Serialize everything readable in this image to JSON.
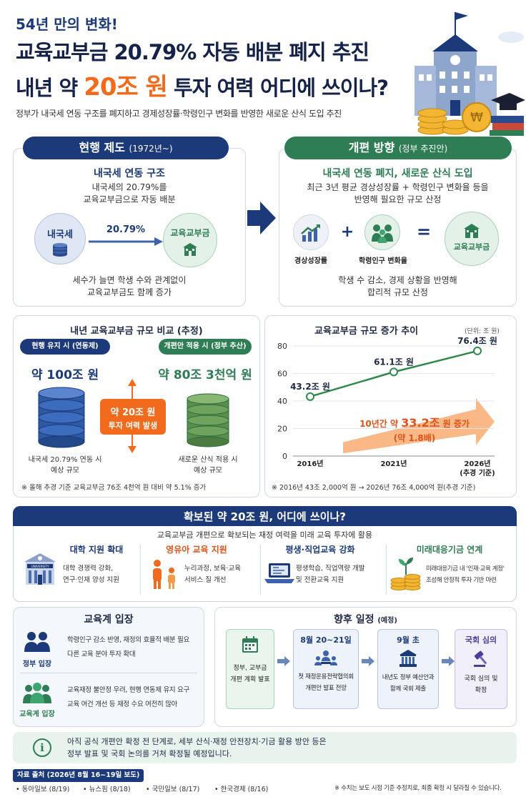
{
  "header": {
    "kicker": "54년 만의 변화!",
    "title_line1": "교육교부금 20.79% 자동 배분 폐지 추진",
    "title_line2_a": "내년 약 ",
    "title_line2_b": "20조 원",
    "title_line2_c": " 투자 여력 어디에 쓰이나?",
    "subtitle": "정부가 내국세 연동 구조를 폐지하고 경제성장률·학령인구 변화를 반영한 새로운 산식 도입 추진"
  },
  "current": {
    "tab": "현행 제도",
    "tab_sub": "(1972년~)",
    "heading": "내국세 연동 구조",
    "desc1": "내국세의 20.79%를",
    "desc2": "교육교부금으로 자동 배분",
    "left_node": "내국세",
    "arrow_label": "20.79%",
    "right_node": "교육교부금",
    "foot1": "세수가 늘면 학생 수와 관계없이",
    "foot2": "교육교부금도 함께 증가"
  },
  "reform": {
    "tab": "개편 방향",
    "tab_sub": "(정부 추진안)",
    "heading": "내국세 연동 폐지, 새로운 산식 도입",
    "desc1": "최근 3년 평균 경상성장률 + 학령인구 변화율 등을",
    "desc2": "반영해 필요한 규모 산정",
    "node1": "경상성장률",
    "plus": "+",
    "node2": "학령인구 변화율",
    "equals": "=",
    "node3": "교육교부금",
    "foot1": "학생 수 감소, 경제 상황을 반영해",
    "foot2": "합리적 규모 산정"
  },
  "compare": {
    "title": "내년 교육교부금 규모 비교 (추정)",
    "left_tag": "현행 유지 시 (연동제)",
    "left_value": "약 100조 원",
    "left_note1": "내국세 20.79% 연동 시",
    "left_note2": "예상 규모",
    "right_tag": "개편안 적용 시 (정부 추산)",
    "right_value": "약 80조 3천억 원",
    "right_note1": "새로운 산식 적용 시",
    "right_note2": "예상 규모",
    "gap1": "약 20조 원",
    "gap2": "투자 여력 발생",
    "footnote": "※ 올해 추경 기준 교육교부금 76조 4천억 원 대비 약 5.1% 증가"
  },
  "chart_data": {
    "type": "line",
    "title": "교육교부금 규모 증가 추이",
    "unit": "(단위: 조 원)",
    "categories": [
      "2016년",
      "2021년",
      "2026년"
    ],
    "category_sub": [
      "",
      "",
      "(추경 기준)"
    ],
    "values": [
      43.2,
      61.1,
      76.4
    ],
    "point_labels": [
      "43.2조 원",
      "61.1조 원",
      "76.4조 원"
    ],
    "ylim": [
      0,
      80
    ],
    "yticks": [
      0,
      20,
      40,
      60,
      80
    ],
    "annotation_a": "10년간 약 ",
    "annotation_b": "33.2조",
    "annotation_c": " 원 증가",
    "annotation_d": "(약 1.8배)",
    "footnote": "※ 2016년 43조 2,000억 원 → 2026년 76조 4,000억 원(추경 기준)",
    "color": "#2f8a4a"
  },
  "use": {
    "title": "확보된 약 20조 원, 어디에 쓰이나?",
    "subtitle": "교육교부금 개편으로 확보되는 재정 여력을 미래 교육 투자에 활용",
    "items": [
      {
        "title": "대학 지원 확대",
        "l1": "대학 경쟁력 강화,",
        "l2": "연구·인재 양성 지원"
      },
      {
        "title": "영유아 교육 지원",
        "l1": "누리과정, 보육·교육",
        "l2": "서비스 질 개선"
      },
      {
        "title": "평생·직업교육 강화",
        "l1": "평생학습, 직업역량 개발",
        "l2": "및 전환교육 지원"
      },
      {
        "title": "미래대응기금 연계",
        "l1": "미래대응기금 내 '인재·교육 계정'",
        "l2": "조성해 안정적 투자 기반 마련"
      }
    ],
    "univ_sign": "UNIVERSITY"
  },
  "stance": {
    "title": "교육계 입장",
    "gov_label": "정부 입장",
    "gov_l1": "학령인구 감소 반영, 재정의 효율적 배분 필요",
    "gov_l2": "다른 교육 분야 투자 확대",
    "edu_label": "교육계 입장",
    "edu_l1": "교육재정 불안정 우려, 현행 연동제 유지 요구",
    "edu_l2": "교육 여건 개선 등 재정 수요 여전히 많아"
  },
  "schedule": {
    "title": "향후 일정",
    "title_sub": "(예정)",
    "steps": [
      {
        "head": "",
        "l1": "정부, 교부금",
        "l2": "개편 계획 발표"
      },
      {
        "head": "8월 20~21일",
        "l1": "첫 재정운용전략협의회",
        "l2": "개편안 발표 전망"
      },
      {
        "head": "9월 초",
        "l1": "내년도 정부 예산안과",
        "l2": "함께 국회 제출"
      },
      {
        "head": "국회 심의",
        "l1": "국회 심의 및",
        "l2": "확정"
      }
    ]
  },
  "notice": {
    "l1": "아직 공식 개편안 확정 전 단계로, 세부 산식·재정 안전장치·기금 활용 방안 등은",
    "l2": "정부 발표 및 국회 논의를 거쳐 확정될 예정입니다."
  },
  "sources": {
    "label": "자료 출처 (2026년 8월 16~19일 보도)",
    "items": [
      "동아일보 (8/19)",
      "뉴스핌 (8/18)",
      "국민일보 (8/17)",
      "한국경제 (8/16)"
    ],
    "note": "※ 수치는 보도 시점 기준 추정치로, 최종 확정 시 달라질 수 있습니다."
  }
}
